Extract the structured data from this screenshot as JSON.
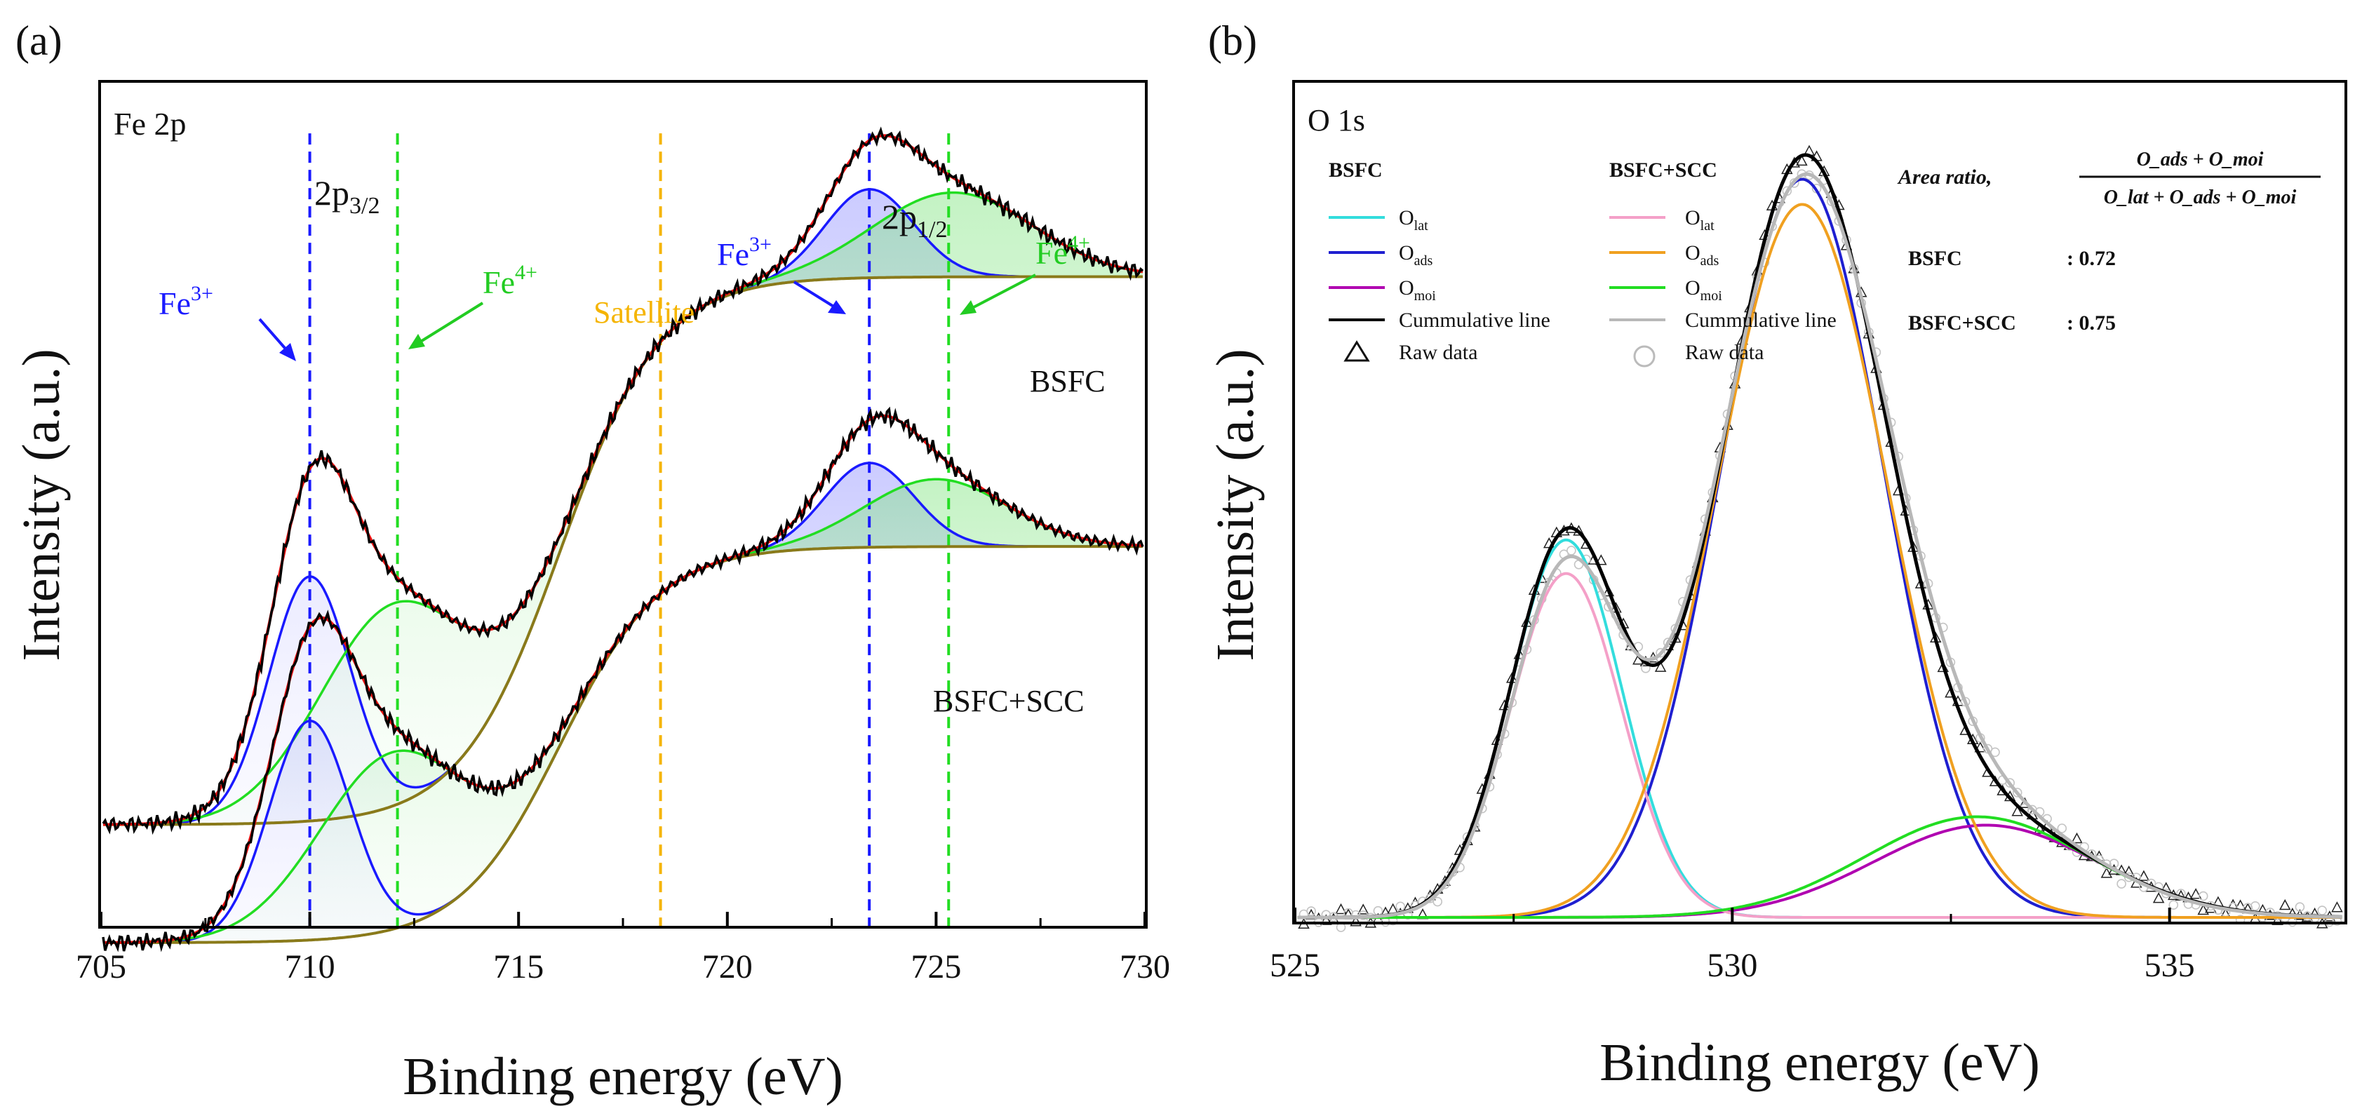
{
  "chart_data": [
    {
      "id": "panel-a",
      "type": "line",
      "panel_label": "(a)",
      "title": "Fe 2p",
      "xlabel": "Binding energy (eV)",
      "ylabel": "Intensity (a.u.)",
      "xlim": [
        705,
        730
      ],
      "ylim": [
        0,
        100
      ],
      "xticks": [
        705,
        710,
        715,
        720,
        725,
        730
      ],
      "xtick_labels": [
        "705",
        "710",
        "715",
        "720",
        "725",
        "730"
      ],
      "samples": [
        {
          "name": "BSFC",
          "label": "BSFC",
          "baseline": {
            "start": 12,
            "end": 77,
            "center": 716,
            "width": 1.2
          },
          "peaks": [
            {
              "name": "Fe3+ 2p3/2",
              "center": 710.0,
              "height": 29,
              "fwhm": 2.3,
              "color": "#1a1aff"
            },
            {
              "name": "Fe4+ 2p3/2",
              "center": 712.0,
              "height": 24,
              "fwhm": 4.2,
              "color": "#22dd22"
            },
            {
              "name": "Fe3+ 2p1/2",
              "center": 723.4,
              "height": 10.5,
              "fwhm": 2.5,
              "color": "#1a1aff"
            },
            {
              "name": "Fe4+ 2p1/2",
              "center": 725.4,
              "height": 10,
              "fwhm": 4.5,
              "color": "#22dd22"
            }
          ]
        },
        {
          "name": "BSFC+SCC",
          "label": "BSFC+SCC",
          "baseline": {
            "start": -2,
            "end": 45,
            "center": 716,
            "width": 1.2
          },
          "peaks": [
            {
              "name": "Fe3+ 2p3/2",
              "center": 710.0,
              "height": 26,
              "fwhm": 2.3,
              "color": "#1a1aff"
            },
            {
              "name": "Fe4+ 2p3/2",
              "center": 712.0,
              "height": 21,
              "fwhm": 4.2,
              "color": "#22dd22"
            },
            {
              "name": "Fe3+ 2p1/2",
              "center": 723.4,
              "height": 10,
              "fwhm": 2.5,
              "color": "#1a1aff"
            },
            {
              "name": "Fe4+ 2p1/2",
              "center": 725.0,
              "height": 8,
              "fwhm": 4.0,
              "color": "#22dd22"
            }
          ]
        }
      ],
      "reference_lines": [
        {
          "x": 710.0,
          "color": "#1a1aff"
        },
        {
          "x": 712.1,
          "color": "#22dd22"
        },
        {
          "x": 718.4,
          "color": "#f5b400"
        },
        {
          "x": 723.4,
          "color": "#1a1aff"
        },
        {
          "x": 725.3,
          "color": "#22dd22"
        }
      ],
      "annotations": {
        "p32_main": "2p",
        "p32_sub": "3/2",
        "p12_main": "2p",
        "p12_sub": "1/2",
        "fe3_base": "Fe",
        "fe3_sup": "3+",
        "fe4_base": "Fe",
        "fe4_sup": "4+",
        "satellite": "Satellite"
      }
    },
    {
      "id": "panel-b",
      "type": "line",
      "panel_label": "(b)",
      "title": "O 1s",
      "xlabel": "Binding energy (eV)",
      "ylabel": "Intensity (a.u.)",
      "xlim": [
        525,
        537
      ],
      "ylim": [
        0,
        100
      ],
      "xticks": [
        525,
        530,
        535
      ],
      "xtick_labels": [
        "525",
        "530",
        "535"
      ],
      "background": 0.5,
      "series": [
        {
          "sample": "BSFC",
          "name": "O_lat",
          "center": 528.1,
          "height": 45,
          "fwhm": 1.5,
          "color": "#33dddd"
        },
        {
          "sample": "BSFC",
          "name": "O_ads",
          "center": 530.8,
          "height": 88,
          "fwhm": 2.2,
          "color": "#1f1fd0"
        },
        {
          "sample": "BSFC",
          "name": "O_moi",
          "center": 532.9,
          "height": 11,
          "fwhm": 3.0,
          "color": "#b000b0"
        },
        {
          "sample": "BSFC+SCC",
          "name": "O_lat",
          "center": 528.1,
          "height": 41,
          "fwhm": 1.5,
          "color": "#f4a0c8"
        },
        {
          "sample": "BSFC+SCC",
          "name": "O_ads",
          "center": 530.8,
          "height": 85,
          "fwhm": 2.3,
          "color": "#f0a020"
        },
        {
          "sample": "BSFC+SCC",
          "name": "O_moi",
          "center": 532.8,
          "height": 12,
          "fwhm": 3.0,
          "color": "#22dd22"
        }
      ],
      "cumulative": [
        {
          "sample": "BSFC",
          "color": "#000000"
        },
        {
          "sample": "BSFC+SCC",
          "color": "#b8b8b8"
        }
      ],
      "legend": {
        "col1_header": "BSFC",
        "col2_header": "BSFC+SCC",
        "col1": [
          {
            "base": "O",
            "sub": "lat",
            "color": "#33dddd"
          },
          {
            "base": "O",
            "sub": "ads",
            "color": "#1f1fd0"
          },
          {
            "base": "O",
            "sub": "moi",
            "color": "#b000b0"
          },
          {
            "text": "Cummulative line",
            "color": "#000000"
          },
          {
            "text": "Raw data",
            "marker": "triangle"
          }
        ],
        "col2": [
          {
            "base": "O",
            "sub": "lat",
            "color": "#f4a0c8"
          },
          {
            "base": "O",
            "sub": "ads",
            "color": "#f0a020"
          },
          {
            "base": "O",
            "sub": "moi",
            "color": "#22dd22"
          },
          {
            "text": "Cummulative line",
            "color": "#b8b8b8"
          },
          {
            "text": "Raw data",
            "marker": "circle"
          }
        ]
      },
      "area_ratio": {
        "label": "Area ratio,",
        "formula_numerator": "O_ads + O_moi",
        "formula_denominator": "O_lat + O_ads + O_moi",
        "rows": [
          {
            "sample": "BSFC",
            "value": ": 0.72"
          },
          {
            "sample": "BSFC+SCC",
            "value": ": 0.75"
          }
        ]
      }
    }
  ]
}
